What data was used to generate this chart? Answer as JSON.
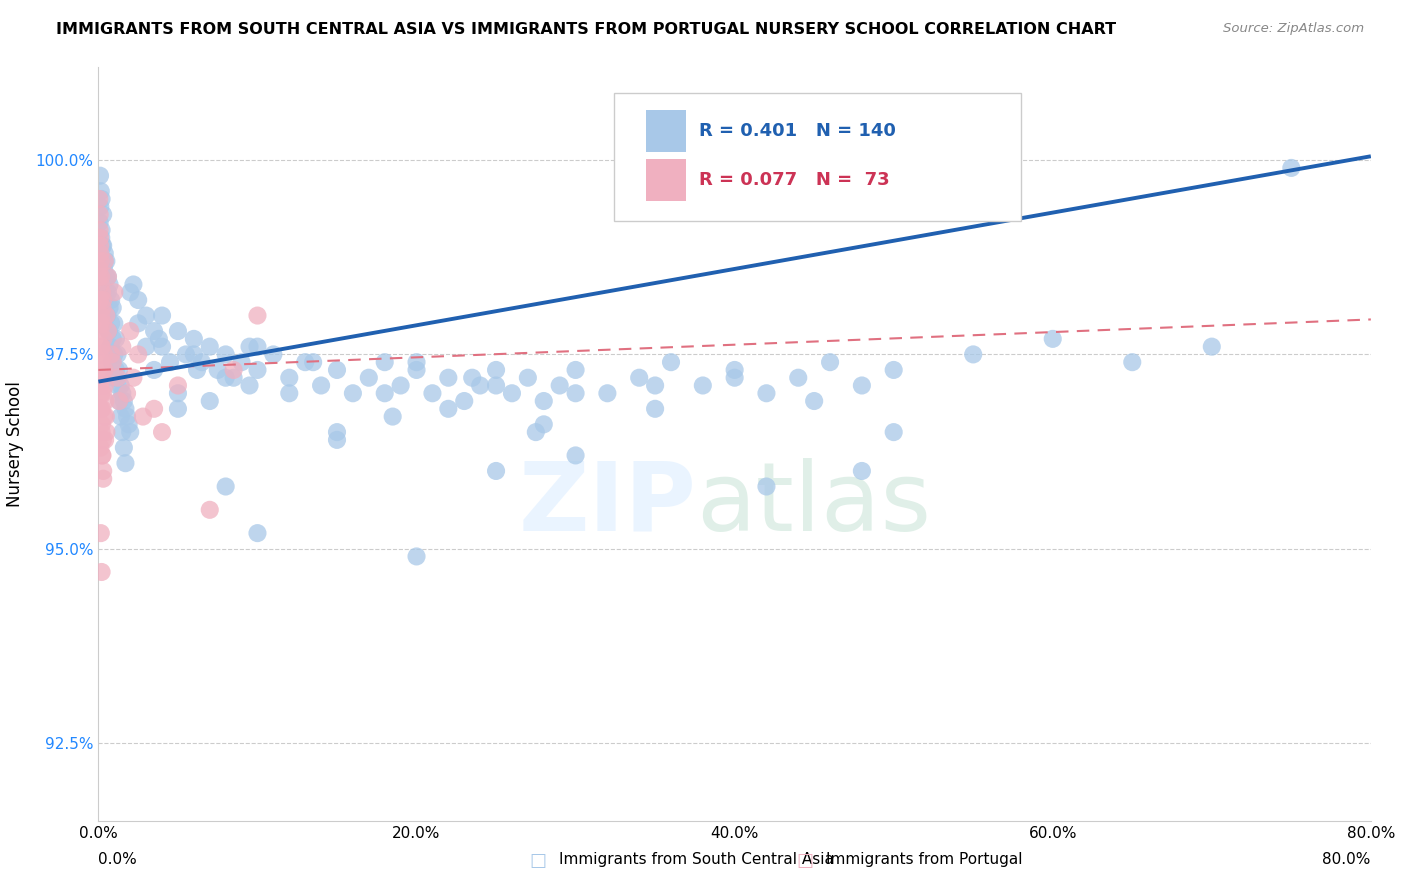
{
  "title": "IMMIGRANTS FROM SOUTH CENTRAL ASIA VS IMMIGRANTS FROM PORTUGAL NURSERY SCHOOL CORRELATION CHART",
  "source": "Source: ZipAtlas.com",
  "ylabel": "Nursery School",
  "watermark_zip": "ZIP",
  "watermark_atlas": "atlas",
  "xlim": [
    0.0,
    80.0
  ],
  "ylim": [
    91.5,
    101.2
  ],
  "yticks": [
    92.5,
    95.0,
    97.5,
    100.0
  ],
  "xticks": [
    0.0,
    20.0,
    40.0,
    60.0,
    80.0
  ],
  "ytick_labels": [
    "92.5%",
    "95.0%",
    "97.5%",
    "100.0%"
  ],
  "xtick_labels": [
    "0.0%",
    "20.0%",
    "40.0%",
    "60.0%",
    "80.0%"
  ],
  "R_blue": 0.401,
  "N_blue": 140,
  "R_pink": 0.077,
  "N_pink": 73,
  "blue_color": "#a8c8e8",
  "pink_color": "#f0b0c0",
  "blue_line_color": "#2060b0",
  "pink_line_color": "#e07080",
  "legend_blue_label": "Immigrants from South Central Asia",
  "legend_pink_label": "Immigrants from Portugal",
  "blue_line_x0": 0.0,
  "blue_line_y0": 97.15,
  "blue_line_x1": 80.0,
  "blue_line_y1": 100.05,
  "pink_line_x0": 0.0,
  "pink_line_y0": 97.3,
  "pink_line_x1": 80.0,
  "pink_line_y1": 97.95,
  "blue_scatter": [
    [
      0.1,
      99.8
    ],
    [
      0.15,
      99.6
    ],
    [
      0.2,
      99.5
    ],
    [
      0.12,
      99.4
    ],
    [
      0.3,
      99.3
    ],
    [
      0.08,
      99.2
    ],
    [
      0.18,
      99.0
    ],
    [
      0.25,
      98.9
    ],
    [
      0.4,
      98.8
    ],
    [
      0.5,
      98.7
    ],
    [
      0.35,
      98.6
    ],
    [
      0.6,
      98.5
    ],
    [
      0.7,
      98.4
    ],
    [
      0.45,
      98.3
    ],
    [
      0.8,
      98.2
    ],
    [
      0.9,
      98.1
    ],
    [
      0.55,
      98.0
    ],
    [
      1.0,
      97.9
    ],
    [
      0.65,
      97.8
    ],
    [
      1.1,
      97.7
    ],
    [
      0.75,
      97.6
    ],
    [
      1.2,
      97.5
    ],
    [
      0.85,
      97.4
    ],
    [
      1.3,
      97.3
    ],
    [
      0.95,
      97.2
    ],
    [
      1.4,
      97.1
    ],
    [
      1.5,
      97.0
    ],
    [
      1.6,
      96.9
    ],
    [
      1.7,
      96.8
    ],
    [
      1.8,
      96.7
    ],
    [
      1.9,
      96.6
    ],
    [
      2.0,
      96.5
    ],
    [
      0.2,
      99.1
    ],
    [
      0.3,
      98.9
    ],
    [
      0.4,
      98.7
    ],
    [
      0.5,
      98.5
    ],
    [
      0.6,
      98.3
    ],
    [
      0.7,
      98.1
    ],
    [
      0.8,
      97.9
    ],
    [
      0.9,
      97.7
    ],
    [
      1.0,
      97.5
    ],
    [
      1.1,
      97.3
    ],
    [
      1.2,
      97.1
    ],
    [
      1.3,
      96.9
    ],
    [
      1.4,
      96.7
    ],
    [
      1.5,
      96.5
    ],
    [
      1.6,
      96.3
    ],
    [
      1.7,
      96.1
    ],
    [
      2.5,
      98.2
    ],
    [
      3.0,
      98.0
    ],
    [
      3.5,
      97.8
    ],
    [
      4.0,
      97.6
    ],
    [
      4.5,
      97.4
    ],
    [
      5.0,
      97.8
    ],
    [
      5.5,
      97.5
    ],
    [
      6.0,
      97.7
    ],
    [
      6.5,
      97.4
    ],
    [
      7.0,
      97.6
    ],
    [
      7.5,
      97.3
    ],
    [
      8.0,
      97.5
    ],
    [
      8.5,
      97.2
    ],
    [
      9.0,
      97.4
    ],
    [
      9.5,
      97.1
    ],
    [
      10.0,
      97.3
    ],
    [
      11.0,
      97.5
    ],
    [
      12.0,
      97.2
    ],
    [
      13.0,
      97.4
    ],
    [
      14.0,
      97.1
    ],
    [
      15.0,
      97.3
    ],
    [
      16.0,
      97.0
    ],
    [
      17.0,
      97.2
    ],
    [
      18.0,
      97.4
    ],
    [
      19.0,
      97.1
    ],
    [
      20.0,
      97.3
    ],
    [
      21.0,
      97.0
    ],
    [
      22.0,
      97.2
    ],
    [
      23.0,
      96.9
    ],
    [
      24.0,
      97.1
    ],
    [
      25.0,
      97.3
    ],
    [
      26.0,
      97.0
    ],
    [
      27.0,
      97.2
    ],
    [
      28.0,
      96.9
    ],
    [
      29.0,
      97.1
    ],
    [
      30.0,
      97.3
    ],
    [
      32.0,
      97.0
    ],
    [
      34.0,
      97.2
    ],
    [
      36.0,
      97.4
    ],
    [
      38.0,
      97.1
    ],
    [
      40.0,
      97.3
    ],
    [
      42.0,
      97.0
    ],
    [
      44.0,
      97.2
    ],
    [
      46.0,
      97.4
    ],
    [
      48.0,
      97.1
    ],
    [
      50.0,
      97.3
    ],
    [
      55.0,
      97.5
    ],
    [
      60.0,
      97.7
    ],
    [
      65.0,
      97.4
    ],
    [
      70.0,
      97.6
    ],
    [
      75.0,
      99.9
    ],
    [
      2.0,
      98.3
    ],
    [
      2.5,
      97.9
    ],
    [
      3.0,
      97.6
    ],
    [
      3.5,
      97.3
    ],
    [
      4.0,
      98.0
    ],
    [
      5.0,
      97.0
    ],
    [
      6.0,
      97.5
    ],
    [
      7.0,
      96.9
    ],
    [
      8.0,
      97.2
    ],
    [
      10.0,
      97.6
    ],
    [
      12.0,
      97.0
    ],
    [
      15.0,
      96.5
    ],
    [
      18.0,
      97.0
    ],
    [
      20.0,
      97.4
    ],
    [
      22.0,
      96.8
    ],
    [
      25.0,
      97.1
    ],
    [
      28.0,
      96.6
    ],
    [
      30.0,
      97.0
    ],
    [
      35.0,
      96.8
    ],
    [
      40.0,
      97.2
    ],
    [
      45.0,
      96.9
    ],
    [
      50.0,
      96.5
    ],
    [
      10.0,
      95.2
    ],
    [
      20.0,
      94.9
    ],
    [
      30.0,
      96.2
    ],
    [
      5.0,
      96.8
    ],
    [
      8.0,
      95.8
    ],
    [
      25.0,
      96.0
    ],
    [
      15.0,
      96.4
    ],
    [
      35.0,
      97.1
    ],
    [
      42.0,
      95.8
    ],
    [
      48.0,
      96.0
    ],
    [
      2.2,
      98.4
    ],
    [
      3.8,
      97.7
    ],
    [
      6.2,
      97.3
    ],
    [
      9.5,
      97.6
    ],
    [
      13.5,
      97.4
    ],
    [
      18.5,
      96.7
    ],
    [
      23.5,
      97.2
    ],
    [
      27.5,
      96.5
    ]
  ],
  "pink_scatter": [
    [
      0.05,
      99.5
    ],
    [
      0.08,
      99.3
    ],
    [
      0.1,
      99.0
    ],
    [
      0.12,
      98.8
    ],
    [
      0.06,
      98.6
    ],
    [
      0.15,
      98.4
    ],
    [
      0.09,
      98.2
    ],
    [
      0.18,
      98.0
    ],
    [
      0.13,
      97.8
    ],
    [
      0.2,
      97.6
    ],
    [
      0.16,
      97.4
    ],
    [
      0.22,
      97.2
    ],
    [
      0.19,
      97.0
    ],
    [
      0.25,
      96.8
    ],
    [
      0.21,
      96.6
    ],
    [
      0.28,
      96.4
    ],
    [
      0.24,
      96.2
    ],
    [
      0.3,
      96.0
    ],
    [
      0.07,
      99.1
    ],
    [
      0.11,
      98.9
    ],
    [
      0.14,
      98.7
    ],
    [
      0.17,
      98.5
    ],
    [
      0.23,
      98.3
    ],
    [
      0.26,
      98.1
    ],
    [
      0.29,
      97.9
    ],
    [
      0.32,
      97.7
    ],
    [
      0.35,
      97.5
    ],
    [
      0.38,
      97.3
    ],
    [
      0.41,
      97.1
    ],
    [
      0.44,
      96.9
    ],
    [
      0.47,
      96.7
    ],
    [
      0.5,
      96.5
    ],
    [
      0.04,
      98.5
    ],
    [
      0.08,
      98.2
    ],
    [
      0.12,
      97.9
    ],
    [
      0.18,
      97.6
    ],
    [
      0.24,
      97.3
    ],
    [
      0.3,
      97.0
    ],
    [
      0.36,
      96.7
    ],
    [
      0.42,
      96.4
    ],
    [
      0.06,
      97.5
    ],
    [
      0.1,
      97.1
    ],
    [
      0.15,
      96.8
    ],
    [
      0.2,
      96.5
    ],
    [
      0.25,
      96.2
    ],
    [
      0.3,
      95.9
    ],
    [
      0.07,
      96.8
    ],
    [
      0.13,
      96.3
    ],
    [
      0.5,
      98.0
    ],
    [
      0.8,
      97.5
    ],
    [
      1.2,
      97.2
    ],
    [
      1.8,
      97.0
    ],
    [
      2.5,
      97.5
    ],
    [
      3.5,
      96.8
    ],
    [
      5.0,
      97.1
    ],
    [
      7.0,
      95.5
    ],
    [
      8.5,
      97.3
    ],
    [
      10.0,
      98.0
    ],
    [
      1.0,
      98.3
    ],
    [
      2.0,
      97.8
    ],
    [
      0.6,
      98.5
    ],
    [
      0.9,
      97.4
    ],
    [
      1.5,
      97.6
    ],
    [
      4.0,
      96.5
    ],
    [
      0.4,
      98.7
    ],
    [
      0.3,
      98.2
    ],
    [
      0.6,
      97.8
    ],
    [
      1.3,
      96.9
    ],
    [
      2.2,
      97.2
    ],
    [
      2.8,
      96.7
    ],
    [
      0.15,
      95.2
    ],
    [
      0.2,
      94.7
    ]
  ]
}
